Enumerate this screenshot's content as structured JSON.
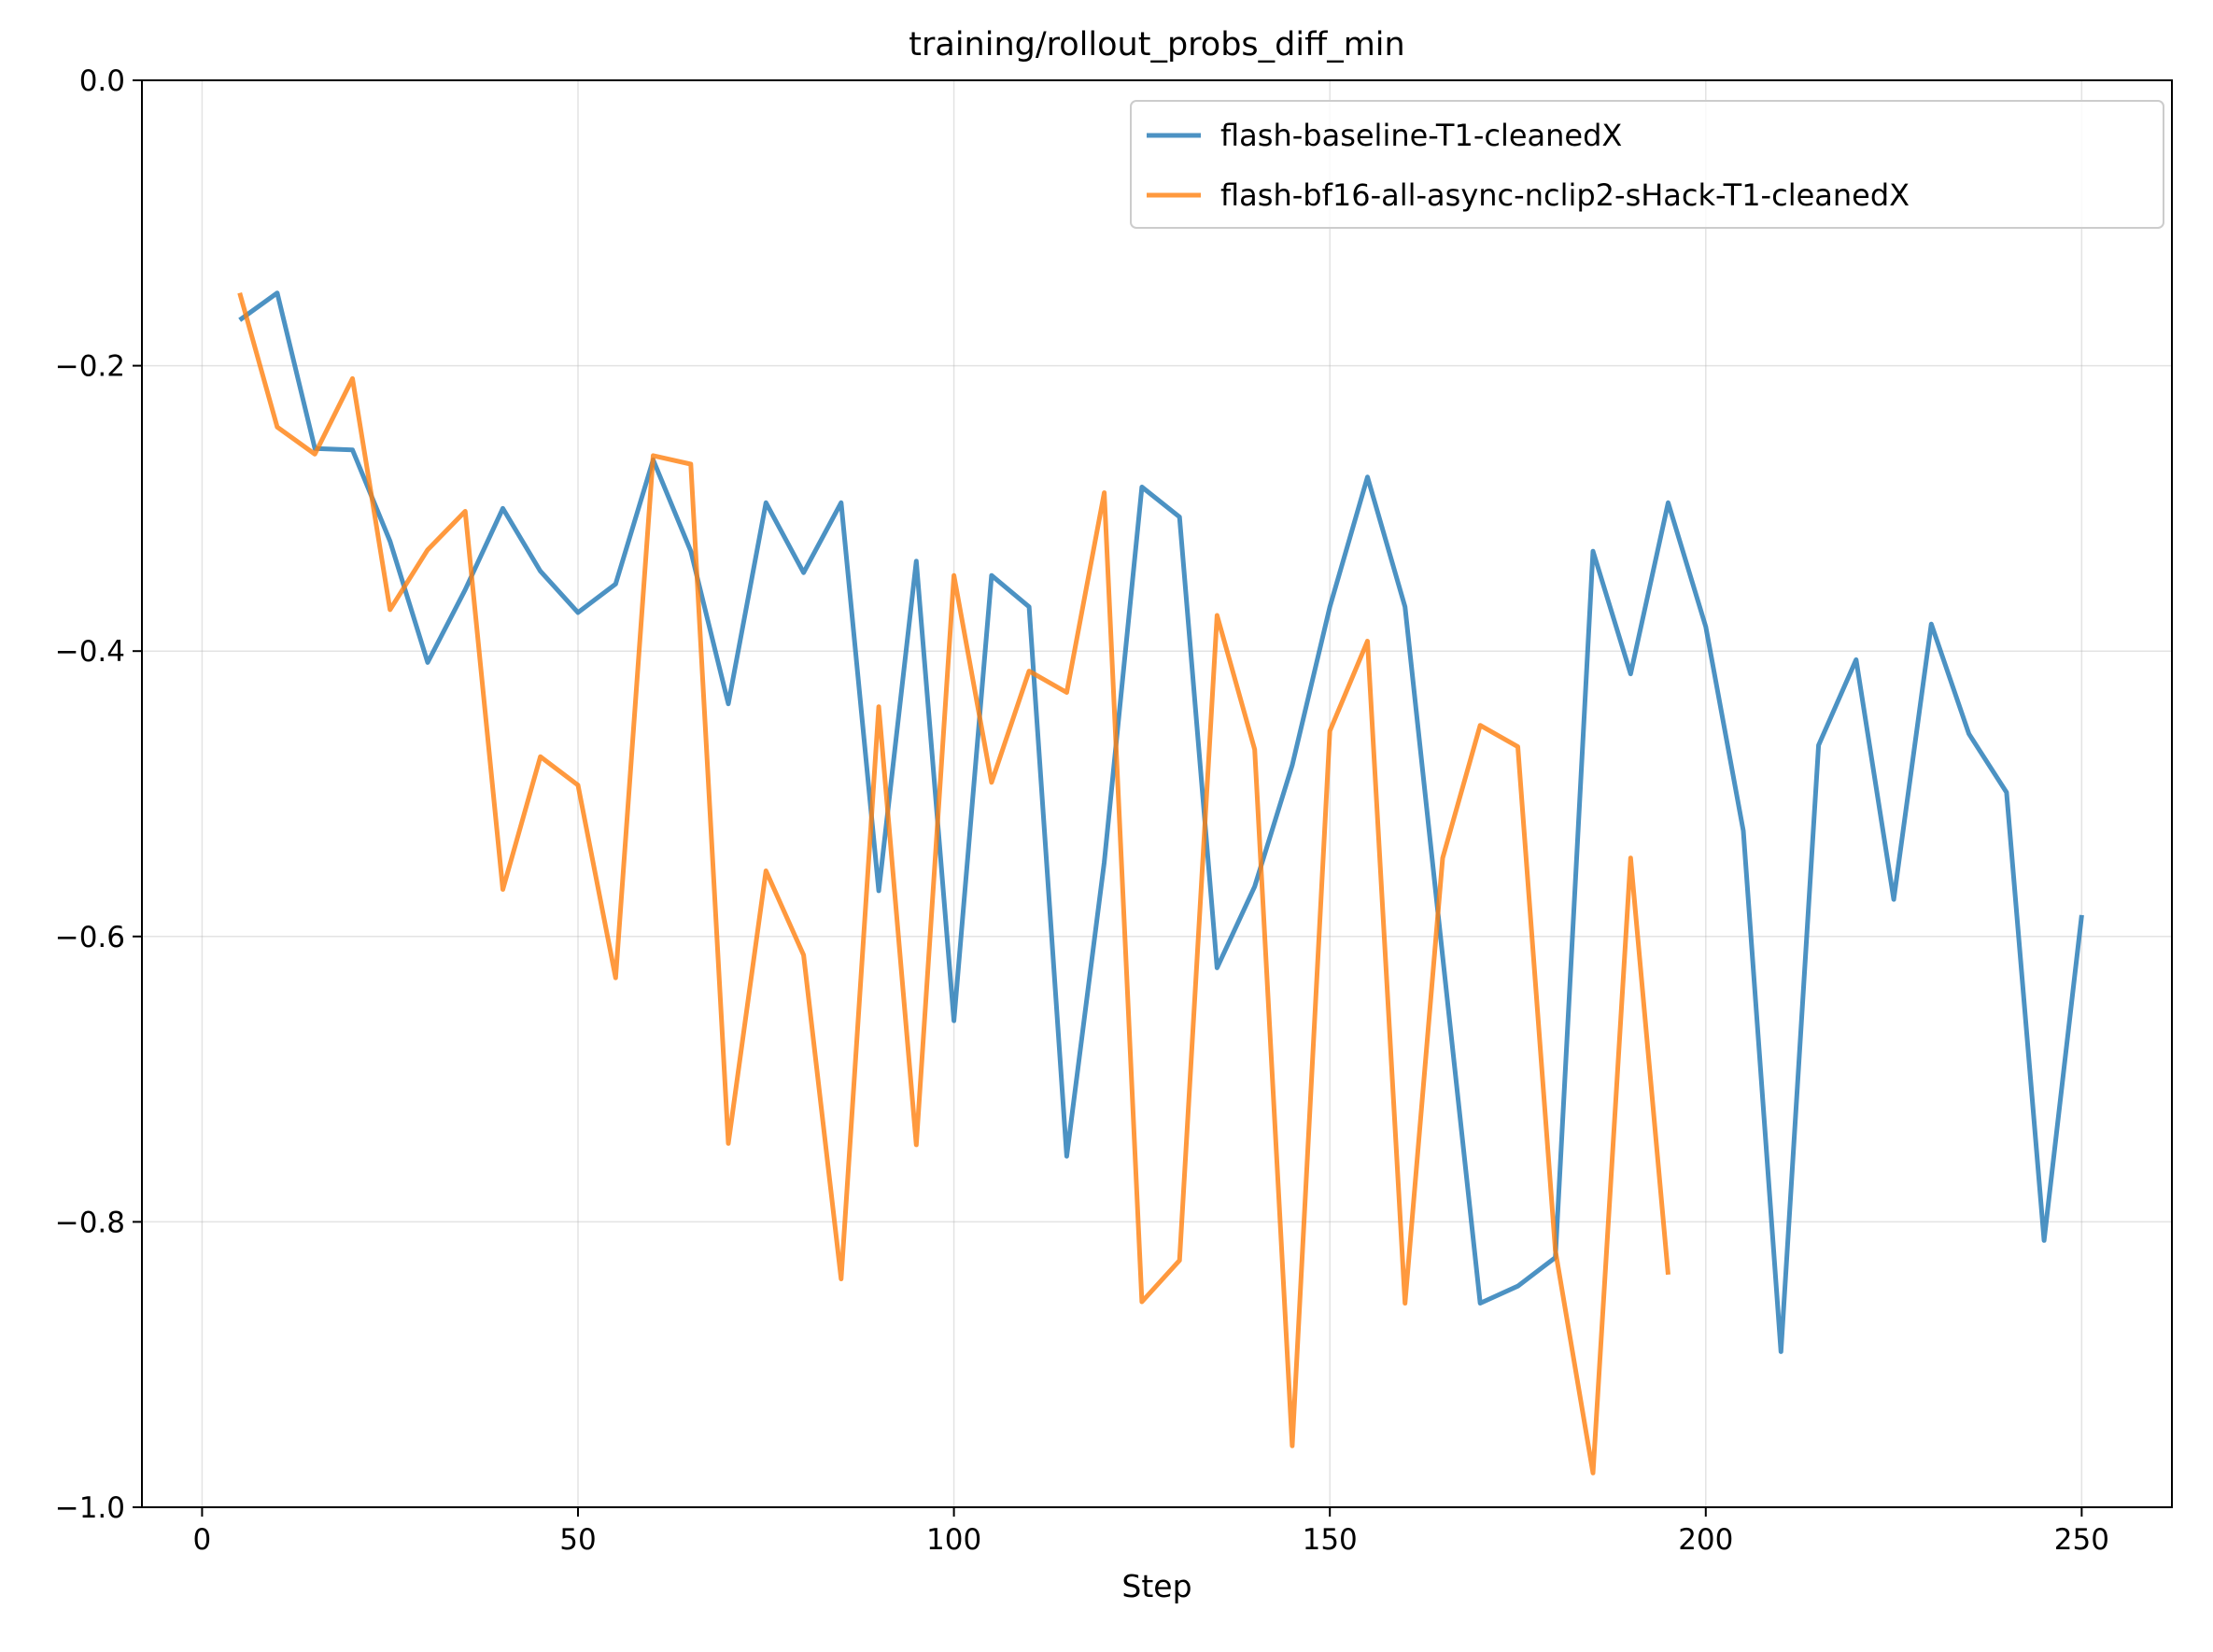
{
  "chart_data": {
    "type": "line",
    "title": "training/rollout_probs_diff_min",
    "xlabel": "Step",
    "ylabel": "",
    "xlim": [
      -8,
      262
    ],
    "ylim": [
      -1.0,
      0.0
    ],
    "xticks": [
      0,
      50,
      100,
      150,
      200,
      250
    ],
    "yticks": [
      0.0,
      -0.2,
      -0.4,
      -0.6,
      -0.8,
      -1.0
    ],
    "xtick_labels": [
      "0",
      "50",
      "100",
      "150",
      "200",
      "250"
    ],
    "ytick_labels": [
      "0.0",
      "−0.2",
      "−0.4",
      "−0.6",
      "−0.8",
      "−1.0"
    ],
    "grid": true,
    "legend_position": "top-right",
    "series": [
      {
        "name": "flash-baseline-T1-cleanedX",
        "color": "#1f77b4",
        "x": [
          5,
          10,
          15,
          20,
          25,
          30,
          35,
          40,
          45,
          50,
          55,
          60,
          65,
          70,
          75,
          80,
          85,
          90,
          95,
          100,
          105,
          110,
          115,
          120,
          125,
          130,
          135,
          140,
          145,
          150,
          155,
          160,
          165,
          170,
          175,
          180,
          185,
          190,
          195,
          200,
          205,
          210,
          215,
          220,
          225,
          230,
          235,
          240,
          245,
          250
        ],
        "y": [
          -0.168,
          -0.149,
          -0.258,
          -0.259,
          -0.323,
          -0.408,
          -0.357,
          -0.3,
          -0.344,
          -0.373,
          -0.353,
          -0.266,
          -0.33,
          -0.437,
          -0.296,
          -0.345,
          -0.296,
          -0.568,
          -0.337,
          -0.659,
          -0.347,
          -0.369,
          -0.754,
          -0.548,
          -0.285,
          -0.306,
          -0.622,
          -0.565,
          -0.48,
          -0.369,
          -0.278,
          -0.369,
          -0.614,
          -0.857,
          -0.845,
          -0.825,
          -0.33,
          -0.416,
          -0.296,
          -0.383,
          -0.526,
          -0.891,
          -0.466,
          -0.406,
          -0.574,
          -0.381,
          -0.458,
          -0.499,
          -0.813,
          -0.585
        ]
      },
      {
        "name": "flash-bf16-all-async-nclip2-sHack-T1-cleanedX",
        "color": "#ff7f0e",
        "x": [
          5,
          10,
          15,
          20,
          25,
          30,
          35,
          40,
          45,
          50,
          55,
          60,
          65,
          70,
          75,
          80,
          85,
          90,
          95,
          100,
          105,
          110,
          115,
          120,
          125,
          130,
          135,
          140,
          145,
          150,
          155,
          160,
          165,
          170,
          175,
          180,
          185,
          190,
          195
        ],
        "y": [
          -0.149,
          -0.243,
          -0.262,
          -0.209,
          -0.371,
          -0.329,
          -0.302,
          -0.567,
          -0.474,
          -0.494,
          -0.629,
          -0.263,
          -0.269,
          -0.745,
          -0.554,
          -0.613,
          -0.84,
          -0.439,
          -0.746,
          -0.347,
          -0.492,
          -0.414,
          -0.429,
          -0.289,
          -0.856,
          -0.827,
          -0.375,
          -0.469,
          -0.957,
          -0.456,
          -0.393,
          -0.857,
          -0.545,
          -0.452,
          -0.467,
          -0.82,
          -0.976,
          -0.545,
          -0.837
        ]
      }
    ]
  }
}
